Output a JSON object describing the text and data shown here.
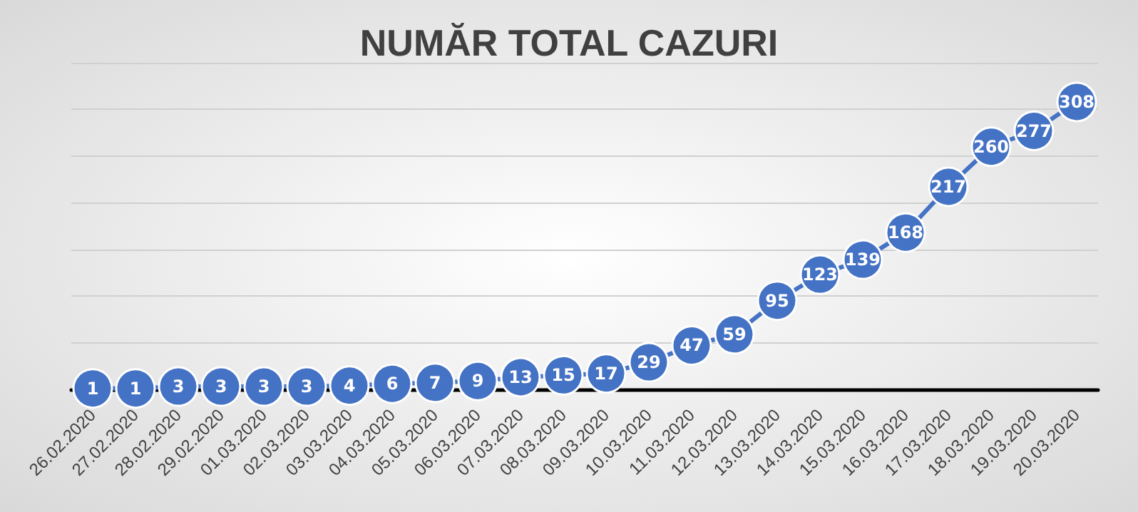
{
  "chart_data": {
    "type": "line",
    "title": "NUMĂR TOTAL CAZURI",
    "categories": [
      "26.02.2020",
      "27.02.2020",
      "28.02.2020",
      "29.02.2020",
      "01.03.2020",
      "02.03.2020",
      "03.03.2020",
      "04.03.2020",
      "05.03.2020",
      "06.03.2020",
      "07.03.2020",
      "08.03.2020",
      "09.03.2020",
      "10.03.2020",
      "11.03.2020",
      "12.03.2020",
      "13.03.2020",
      "14.03.2020",
      "15.03.2020",
      "16.03.2020",
      "17.03.2020",
      "18.03.2020",
      "19.03.2020",
      "20.03.2020"
    ],
    "series": [
      {
        "color": "#4472c4",
        "values": [
          1,
          1,
          3,
          3,
          3,
          3,
          4,
          6,
          7,
          9,
          13,
          15,
          17,
          29,
          47,
          59,
          95,
          123,
          139,
          168,
          217,
          260,
          277,
          308
        ]
      }
    ],
    "ylim": [
      0,
      350
    ],
    "yticks": [
      {
        "value": 0,
        "label": null
      },
      {
        "value": 50,
        "label": null
      },
      {
        "value": 100,
        "label": null
      },
      {
        "value": 150,
        "label": null
      },
      {
        "value": 200,
        "label": null
      },
      {
        "value": 250,
        "label": null
      },
      {
        "value": 300,
        "label": null
      },
      {
        "value": 350,
        "label": null
      }
    ],
    "tick_labels": "x",
    "grid": "y",
    "marker": "circle",
    "line_style": "solid",
    "data_labels": true
  }
}
